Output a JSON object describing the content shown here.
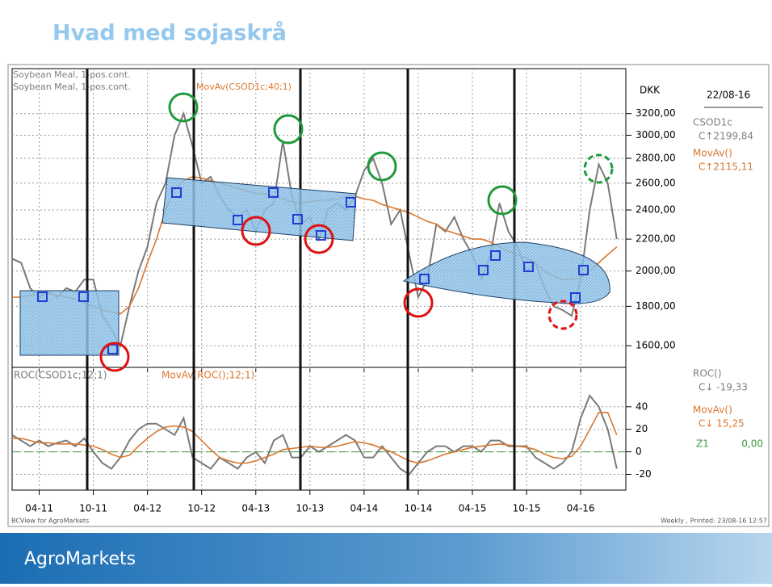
{
  "slide": {
    "title": "Hvad med sojaskrå",
    "footer_left": "BCView for AgroMarkets",
    "footer_right": "Weekly , Printed: 23/08-16 12:57",
    "brand": "AgroMarkets"
  },
  "chart_data": [
    {
      "type": "line",
      "subtitle": "Soybean Meal, 1-pos.cont.",
      "y_label": "DKK",
      "date": "22/08-16",
      "log_scale": true,
      "grid": true,
      "x": [
        "01-11",
        "02-11",
        "03-11",
        "04-11",
        "05-11",
        "06-11",
        "07-11",
        "08-11",
        "09-11",
        "10-11",
        "11-11",
        "12-11",
        "01-12",
        "02-12",
        "03-12",
        "04-12",
        "05-12",
        "06-12",
        "07-12",
        "08-12",
        "09-12",
        "10-12",
        "11-12",
        "12-12",
        "01-13",
        "02-13",
        "03-13",
        "04-13",
        "05-13",
        "06-13",
        "07-13",
        "08-13",
        "09-13",
        "10-13",
        "11-13",
        "12-13",
        "01-14",
        "02-14",
        "03-14",
        "04-14",
        "05-14",
        "06-14",
        "07-14",
        "08-14",
        "09-14",
        "10-14",
        "11-14",
        "12-14",
        "01-15",
        "02-15",
        "03-15",
        "04-15",
        "05-15",
        "06-15",
        "07-15",
        "08-15",
        "09-15",
        "10-15",
        "11-15",
        "12-15",
        "01-16",
        "02-16",
        "03-16",
        "04-16",
        "05-16",
        "06-16",
        "07-16",
        "08-16"
      ],
      "series": [
        {
          "name": "Soybean Meal, 1-pos.cont.",
          "color": "#7a7a7a",
          "values": [
            2075,
            2050,
            1900,
            1850,
            1880,
            1850,
            1900,
            1880,
            1950,
            1950,
            1750,
            1680,
            1600,
            1800,
            2000,
            2150,
            2450,
            2600,
            3000,
            3200,
            2900,
            2600,
            2650,
            2500,
            2400,
            2350,
            2400,
            2250,
            2400,
            2450,
            2950,
            2500,
            2300,
            2350,
            2200,
            2400,
            2450,
            2400,
            2500,
            2700,
            2800,
            2600,
            2300,
            2400,
            2100,
            1850,
            1950,
            2300,
            2250,
            2350,
            2200,
            2100,
            1950,
            2100,
            2450,
            2250,
            2150,
            2000,
            2050,
            1900,
            1800,
            1780,
            1750,
            1950,
            2400,
            2750,
            2600,
            2200
          ]
        },
        {
          "name": "MovAv(CSOD1c;40;1)",
          "color": "#d9772e",
          "values": [
            1850,
            1850,
            1860,
            1870,
            1870,
            1860,
            1850,
            1840,
            1820,
            1800,
            1780,
            1770,
            1760,
            1800,
            1900,
            2050,
            2200,
            2400,
            2550,
            2620,
            2650,
            2640,
            2620,
            2600,
            2580,
            2560,
            2540,
            2520,
            2520,
            2500,
            2480,
            2460,
            2450,
            2460,
            2470,
            2470,
            2480,
            2500,
            2500,
            2480,
            2470,
            2440,
            2420,
            2400,
            2380,
            2350,
            2320,
            2300,
            2260,
            2240,
            2220,
            2200,
            2200,
            2180,
            2150,
            2120,
            2100,
            2080,
            2050,
            2000,
            1970,
            1950,
            1950,
            1960,
            2000,
            2050,
            2100,
            2150
          ]
        }
      ],
      "readout": [
        {
          "name": "CSOD1c",
          "value": "C↑2199,84",
          "color": "#808080"
        },
        {
          "name": "MovAv()",
          "value": "C↑2115,11",
          "color": "#d9772e"
        }
      ],
      "xlim": [
        "01-11",
        "09-16"
      ],
      "xticks": [
        "04-11",
        "10-11",
        "04-12",
        "10-12",
        "04-13",
        "10-13",
        "04-14",
        "10-14",
        "04-15",
        "10-15",
        "04-16"
      ],
      "ylim": [
        1500,
        3660
      ],
      "yticks": [
        {
          "value": 1600,
          "label": "1600,00"
        },
        {
          "value": 1800,
          "label": "1800,00"
        },
        {
          "value": 2000,
          "label": "2000,00"
        },
        {
          "value": 2200,
          "label": "2200,00"
        },
        {
          "value": 2400,
          "label": "2400,00"
        },
        {
          "value": 2600,
          "label": "2600,00"
        },
        {
          "value": 2800,
          "label": "2800,00"
        },
        {
          "value": 3000,
          "label": "3000,00"
        },
        {
          "value": 3200,
          "label": "3200,00"
        }
      ]
    },
    {
      "type": "line",
      "grid": true,
      "x": [
        "01-11",
        "02-11",
        "03-11",
        "04-11",
        "05-11",
        "06-11",
        "07-11",
        "08-11",
        "09-11",
        "10-11",
        "11-11",
        "12-11",
        "01-12",
        "02-12",
        "03-12",
        "04-12",
        "05-12",
        "06-12",
        "07-12",
        "08-12",
        "09-12",
        "10-12",
        "11-12",
        "12-12",
        "01-13",
        "02-13",
        "03-13",
        "04-13",
        "05-13",
        "06-13",
        "07-13",
        "08-13",
        "09-13",
        "10-13",
        "11-13",
        "12-13",
        "01-14",
        "02-14",
        "03-14",
        "04-14",
        "05-14",
        "06-14",
        "07-14",
        "08-14",
        "09-14",
        "10-14",
        "11-14",
        "12-14",
        "01-15",
        "02-15",
        "03-15",
        "04-15",
        "05-15",
        "06-15",
        "07-15",
        "08-15",
        "09-15",
        "10-15",
        "11-15",
        "12-15",
        "01-16",
        "02-16",
        "03-16",
        "04-16",
        "05-16",
        "06-16",
        "07-16",
        "08-16"
      ],
      "series": [
        {
          "name": "ROC(CSOD1c;12;1)",
          "color": "#7a7a7a",
          "values": [
            15,
            10,
            5,
            10,
            5,
            8,
            10,
            5,
            12,
            0,
            -10,
            -15,
            -5,
            10,
            20,
            25,
            25,
            20,
            15,
            30,
            -5,
            -10,
            -15,
            -5,
            -10,
            -15,
            -5,
            0,
            -10,
            10,
            15,
            -5,
            -5,
            5,
            0,
            5,
            10,
            15,
            10,
            -5,
            -5,
            5,
            -5,
            -15,
            -20,
            -10,
            0,
            5,
            5,
            0,
            5,
            5,
            0,
            10,
            10,
            5,
            5,
            5,
            -5,
            -10,
            -15,
            -10,
            0,
            30,
            50,
            40,
            20,
            -15
          ]
        },
        {
          "name": "MovAv(ROC();12;1)",
          "color": "#d9772e",
          "values": [
            12,
            12,
            10,
            8,
            8,
            7,
            7,
            7,
            6,
            5,
            2,
            -2,
            -5,
            -3,
            5,
            12,
            18,
            22,
            23,
            22,
            18,
            10,
            2,
            -5,
            -8,
            -10,
            -10,
            -8,
            -5,
            -2,
            2,
            3,
            4,
            5,
            4,
            4,
            5,
            7,
            9,
            8,
            6,
            3,
            0,
            -4,
            -8,
            -10,
            -8,
            -5,
            -2,
            0,
            2,
            4,
            5,
            6,
            7,
            6,
            5,
            4,
            2,
            -2,
            -5,
            -6,
            -4,
            5,
            20,
            35,
            35,
            15
          ]
        }
      ],
      "readout": [
        {
          "name": "ROC()",
          "value": "C↓ -19,33",
          "color": "#808080"
        },
        {
          "name": "MovAv()",
          "value": "C↓ 15,25",
          "color": "#d9772e"
        }
      ],
      "reference_line": {
        "name": "Z1",
        "value": 0,
        "label": "0,00",
        "color": "#3a9a3a"
      },
      "xlim": [
        "01-11",
        "09-16"
      ],
      "xticks": [
        "04-11",
        "10-11",
        "04-12",
        "10-12",
        "04-13",
        "10-13",
        "04-14",
        "10-14",
        "04-15",
        "10-15",
        "04-16"
      ],
      "ylim": [
        -34,
        75
      ],
      "yticks": [
        40,
        20,
        0,
        -20
      ]
    }
  ]
}
